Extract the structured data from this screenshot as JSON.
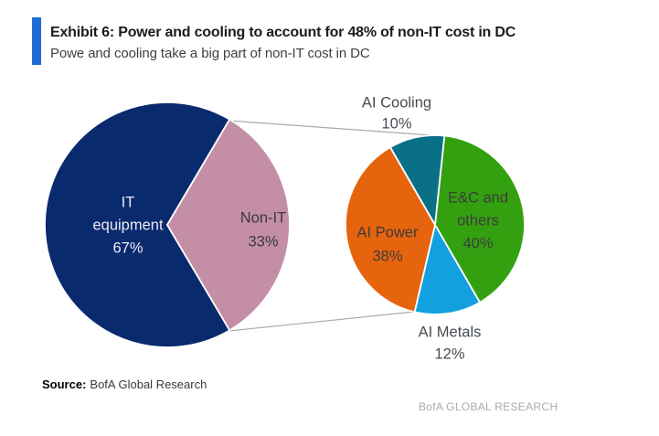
{
  "header": {
    "exhibit_title": "Exhibit 6: Power and cooling to account for 48% of non-IT cost in DC",
    "subtitle": "Powe and cooling take a big part of non-IT cost in DC",
    "accent_color": "#1e6cd6"
  },
  "chart_data": {
    "type": "pie",
    "variant": "pie-of-pie",
    "title": "Exhibit 6: Power and cooling to account for 48% of non-IT cost in DC",
    "legend": "none",
    "annotations": [
      "connector lines link the Non-IT slice to the breakdown pie"
    ],
    "pies": [
      {
        "id": "dc-cost-split",
        "description": "Total DC cost split",
        "slices": [
          {
            "label": "IT equipment",
            "value": 67,
            "unit": "%",
            "color": "#0a2a6e",
            "text_color": "#efeaf3"
          },
          {
            "label": "Non-IT",
            "value": 33,
            "unit": "%",
            "color": "#c48ea7",
            "text_color": "#3a3740"
          }
        ]
      },
      {
        "id": "non-it-breakdown",
        "description": "Breakdown of non-IT cost",
        "slices": [
          {
            "label": "E&C and others",
            "value": 40,
            "unit": "%",
            "color": "#33a00f",
            "text_color": "#3d3d3d"
          },
          {
            "label": "AI Metals",
            "value": 12,
            "unit": "%",
            "color": "#12a0e0",
            "text_color": "#464c52",
            "outside": true
          },
          {
            "label": "AI Power",
            "value": 38,
            "unit": "%",
            "color": "#e6640e",
            "text_color": "#3d3d3d"
          },
          {
            "label": "AI Cooling",
            "value": 10,
            "unit": "%",
            "color": "#0a7086",
            "text_color": "#464c52",
            "outside": true
          }
        ]
      }
    ]
  },
  "source": {
    "label": "Source:",
    "text": "BofA Global Research"
  },
  "watermark": "BofA GLOBAL RESEARCH"
}
